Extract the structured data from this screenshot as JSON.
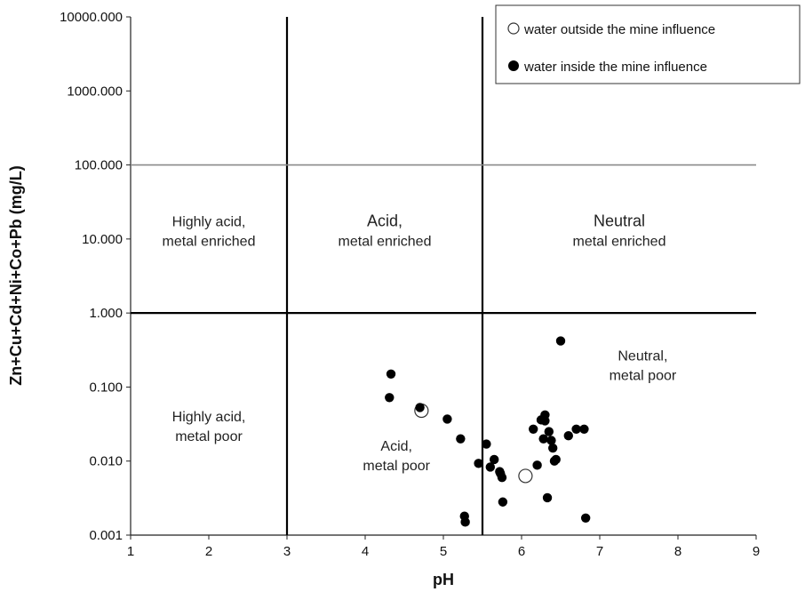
{
  "chart_data": {
    "type": "scatter",
    "xlabel": "pH",
    "ylabel": "Zn+Cu+Cd+Ni+Co+Pb (mg/L)",
    "xlim": [
      1,
      9
    ],
    "ylim": [
      0.001,
      10000
    ],
    "yscale": "log",
    "x_ticks": [
      "1",
      "2",
      "3",
      "4",
      "5",
      "6",
      "7",
      "8",
      "9"
    ],
    "y_ticks": [
      "0.001",
      "0.010",
      "0.100",
      "1.000",
      "10.000",
      "100.000",
      "1000.000",
      "10000.000"
    ],
    "grid": false,
    "legend_position": "top-right",
    "divider_lines": [
      {
        "orientation": "vertical",
        "x": 3
      },
      {
        "orientation": "vertical",
        "x": 5.5
      },
      {
        "orientation": "horizontal",
        "y": 1
      },
      {
        "orientation": "horizontal",
        "y": 100
      }
    ],
    "regions": [
      {
        "lines": [
          "Highly acid,",
          "metal enriched"
        ],
        "x": 2.0,
        "y": 13,
        "size": "normal"
      },
      {
        "lines": [
          "Acid,",
          "metal enriched"
        ],
        "x": 4.25,
        "y": 13,
        "size": "big"
      },
      {
        "lines": [
          "Neutral",
          "metal enriched"
        ],
        "x": 7.25,
        "y": 13,
        "size": "big"
      },
      {
        "lines": [
          "Highly acid,",
          "metal poor"
        ],
        "x": 2.0,
        "y": 0.03,
        "size": "normal"
      },
      {
        "lines": [
          "Acid,",
          "metal poor"
        ],
        "x": 4.4,
        "y": 0.012,
        "size": "normal"
      },
      {
        "lines": [
          "Neutral,",
          "metal poor"
        ],
        "x": 7.55,
        "y": 0.2,
        "size": "normal"
      }
    ],
    "series": [
      {
        "name": "water outside the mine influence",
        "marker": "open-circle",
        "color": "#ffffff",
        "edge": "#333333",
        "x": [
          4.72,
          6.05
        ],
        "y": [
          0.048,
          0.0063
        ]
      },
      {
        "name": "water inside the mine influence",
        "marker": "filled-circle",
        "color": "#000000",
        "x": [
          4.33,
          4.31,
          4.7,
          5.05,
          5.22,
          5.27,
          5.28,
          5.45,
          5.55,
          5.6,
          5.65,
          5.72,
          5.75,
          5.76,
          5.73,
          6.15,
          6.2,
          6.25,
          6.28,
          6.3,
          6.33,
          6.35,
          6.38,
          6.4,
          6.42,
          6.44,
          6.5,
          6.6,
          6.7,
          6.8,
          6.82,
          6.3
        ],
        "y": [
          0.15,
          0.072,
          0.053,
          0.037,
          0.02,
          0.0018,
          0.0015,
          0.0093,
          0.017,
          0.0083,
          0.0105,
          0.0072,
          0.006,
          0.0028,
          0.0068,
          0.027,
          0.0088,
          0.036,
          0.02,
          0.042,
          0.0032,
          0.025,
          0.019,
          0.015,
          0.01,
          0.0105,
          0.42,
          0.022,
          0.027,
          0.027,
          0.0017,
          0.035
        ]
      }
    ]
  }
}
